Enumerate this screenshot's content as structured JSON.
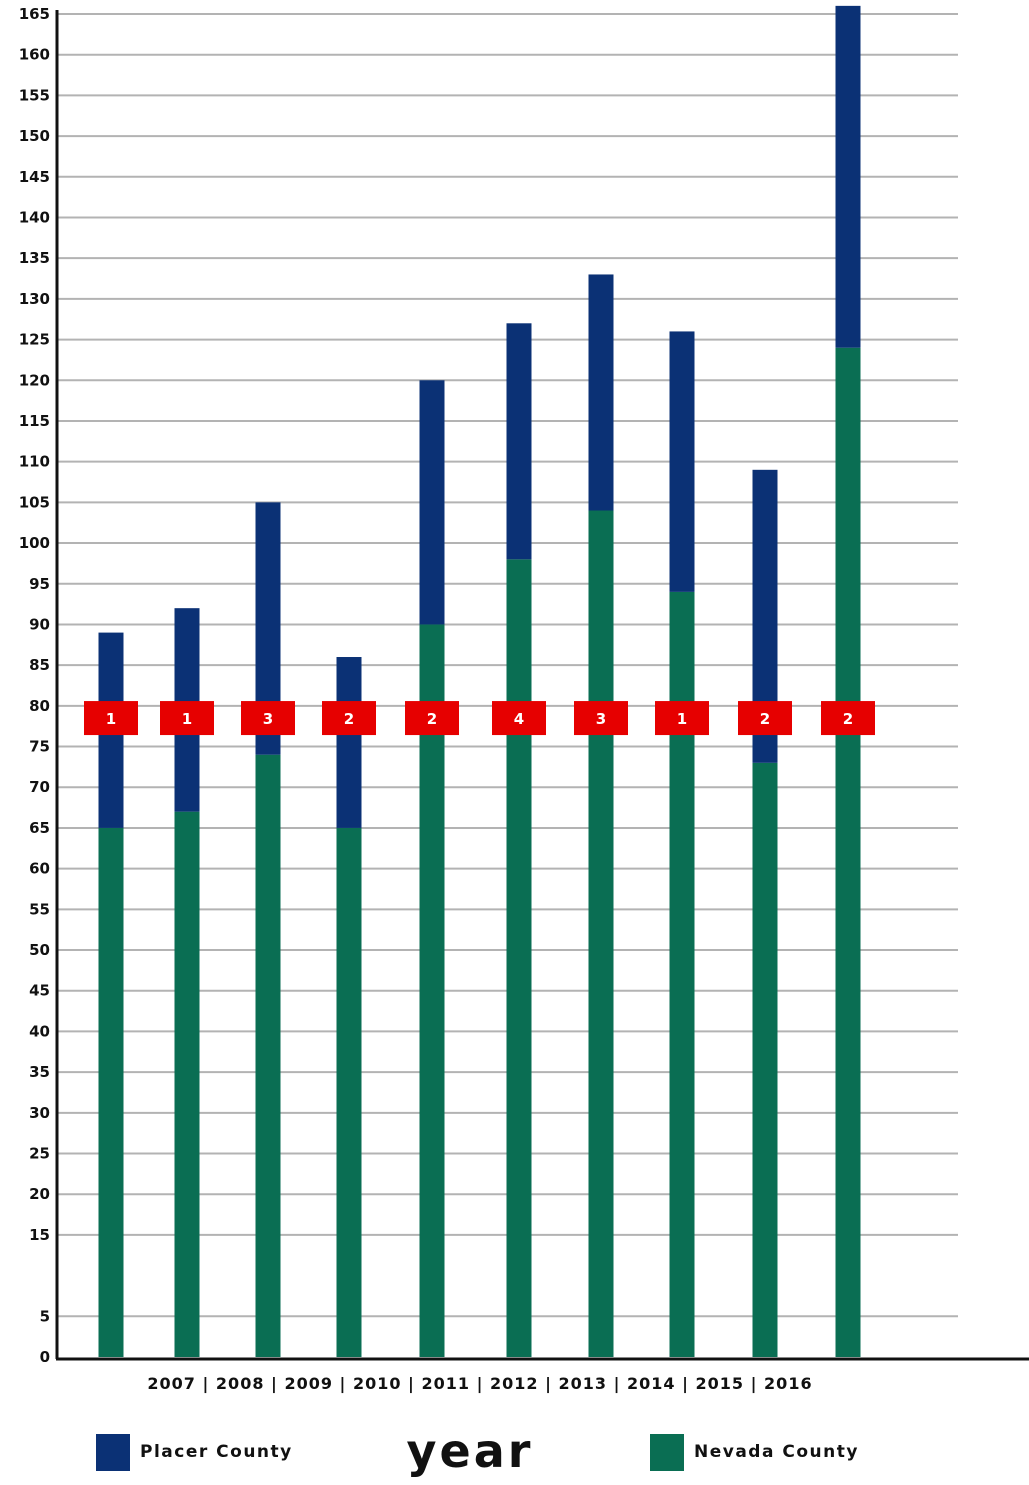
{
  "chart_data": {
    "type": "bar",
    "stacked": true,
    "xlabel": "year",
    "ylabel": "",
    "ylim": [
      0,
      165
    ],
    "grid": true,
    "legend_position": "bottom",
    "y_ticks": [
      0,
      5,
      15,
      20,
      25,
      30,
      35,
      40,
      45,
      50,
      55,
      60,
      65,
      70,
      75,
      80,
      85,
      90,
      95,
      100,
      105,
      110,
      115,
      120,
      125,
      130,
      135,
      140,
      145,
      150,
      155,
      160,
      165
    ],
    "categories": [
      "2007",
      "2008",
      "2009",
      "2010",
      "2011",
      "2012",
      "2013",
      "2014",
      "2015",
      "2016"
    ],
    "x_tick_text": "2007 | 2008 | 2009 | 2010 | 2011 | 2012 | 2013 | 2014 | 2015 | 2016",
    "series": [
      {
        "name": "Nevada County",
        "color": "#0a6e53",
        "values": [
          65,
          67,
          74,
          65,
          90,
          98,
          104,
          94,
          73,
          124
        ]
      },
      {
        "name": "Placer County",
        "color": "#0b3175",
        "values": [
          24,
          25,
          31,
          21,
          30,
          29,
          29,
          32,
          36,
          42
        ]
      }
    ],
    "annotations": {
      "color": "#e60000",
      "at_value": 78.5,
      "labels": [
        "1",
        "1",
        "3",
        "2",
        "2",
        "4",
        "3",
        "1",
        "2",
        "2"
      ]
    }
  },
  "legend": {
    "placer_label": "Placer County",
    "nevada_label": "Nevada County",
    "placer_color": "#0b3175",
    "nevada_color": "#0a6e53"
  }
}
